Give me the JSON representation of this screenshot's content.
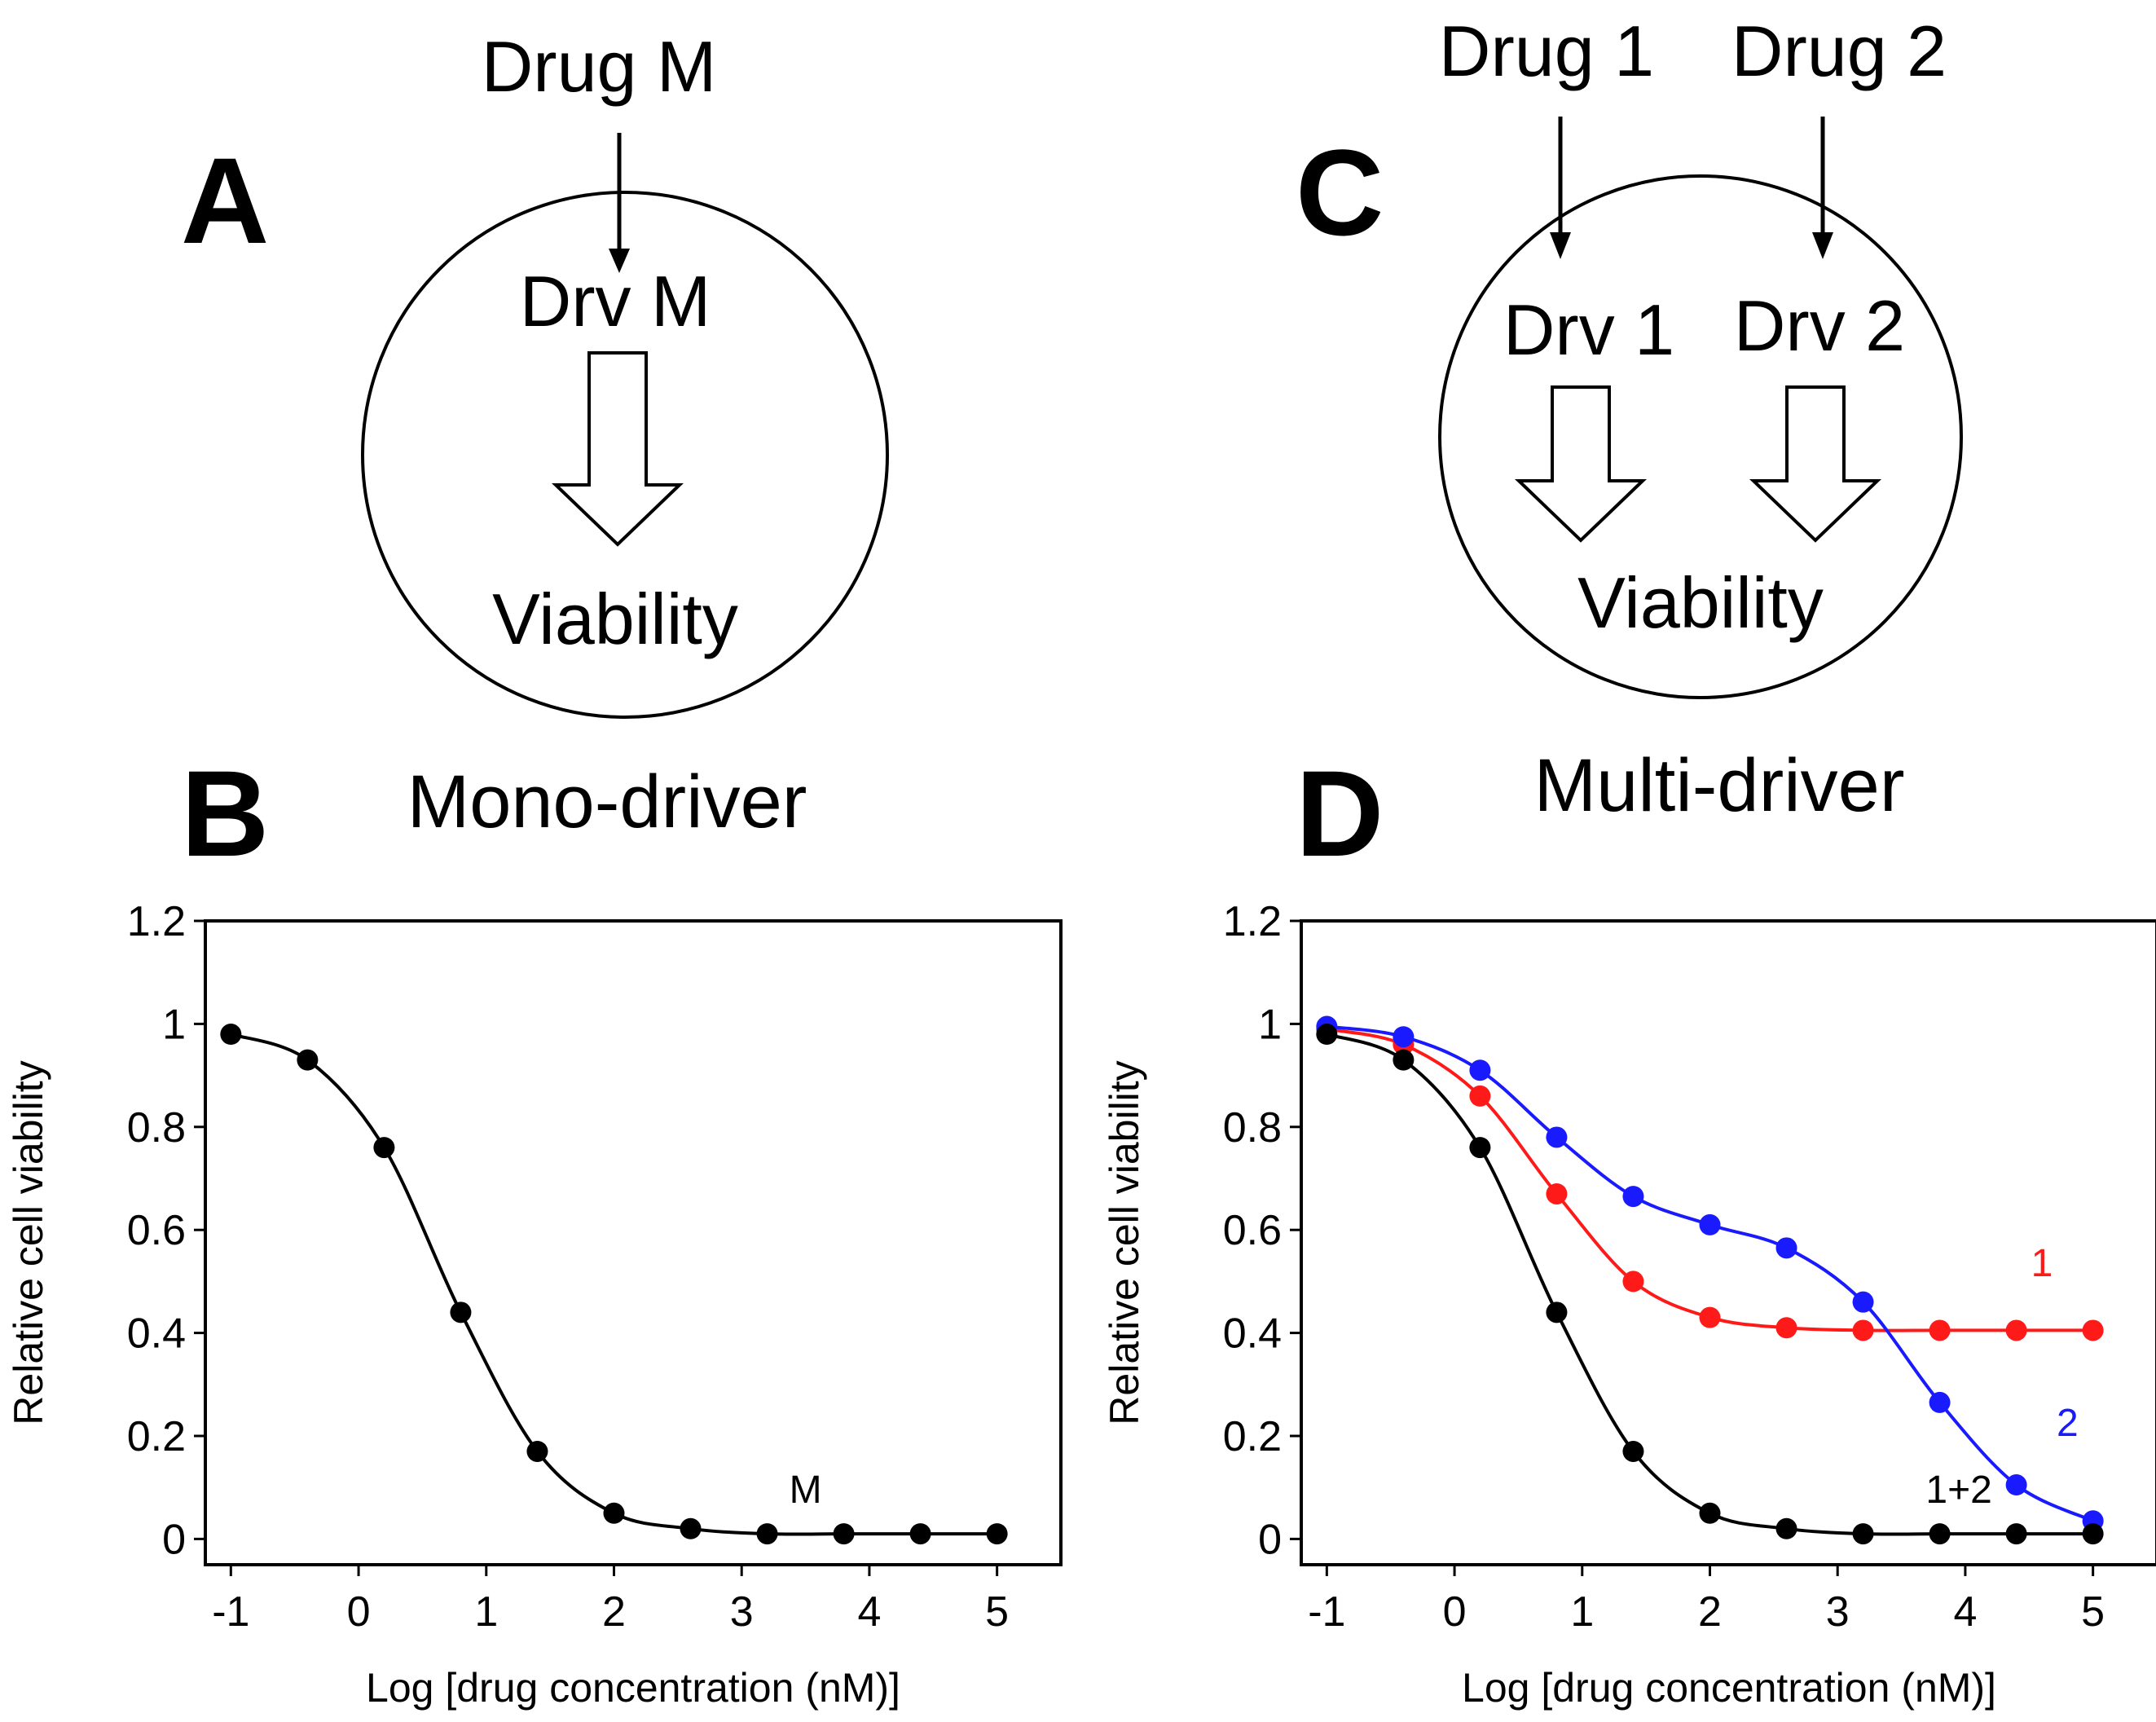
{
  "figure": {
    "panel_a": {
      "letter": "A",
      "drug_label": "Drug M",
      "driver_label": "Drv M",
      "outcome_label": "Viability",
      "caption": "Mono-driver"
    },
    "panel_b": {
      "letter": "B"
    },
    "panel_c": {
      "letter": "C",
      "drug1_label": "Drug 1",
      "drug2_label": "Drug 2",
      "driver1_label": "Drv 1",
      "driver2_label": "Drv 2",
      "outcome_label": "Viability",
      "caption": "Multi-driver"
    },
    "panel_d": {
      "letter": "D"
    }
  },
  "colors": {
    "black": "#000000",
    "red": "#ff1a1a",
    "blue": "#1a1aff"
  },
  "chart_data": [
    {
      "id": "panel-b",
      "type": "line",
      "xlabel": "Log [drug concentration (nM)]",
      "ylabel": "Relative cell viability",
      "xlim": [
        -1.2,
        5.5
      ],
      "ylim": [
        -0.05,
        1.2
      ],
      "xticks": [
        -1,
        0,
        1,
        2,
        3,
        4,
        5
      ],
      "xtick_labels": [
        "-1",
        "0",
        "1",
        "2",
        "3",
        "4",
        "5"
      ],
      "yticks": [
        0,
        0.2,
        0.4,
        0.6,
        0.8,
        1,
        1.2
      ],
      "ytick_labels": [
        "0",
        "0.2",
        "0.4",
        "0.6",
        "0.8",
        "1",
        "1.2"
      ],
      "series": [
        {
          "name": "M",
          "color": "#000000",
          "label_pos": [
            3.5,
            0.07
          ],
          "x": [
            -1,
            -0.4,
            0.2,
            0.8,
            1.4,
            2.0,
            2.6,
            3.2,
            3.8,
            4.4,
            5.0
          ],
          "y": [
            0.98,
            0.93,
            0.76,
            0.44,
            0.17,
            0.05,
            0.02,
            0.01,
            0.01,
            0.01,
            0.01
          ]
        }
      ]
    },
    {
      "id": "panel-d",
      "type": "line",
      "xlabel": "Log [drug concentration (nM)]",
      "ylabel": "Relative cell viability",
      "xlim": [
        -1.2,
        5.5
      ],
      "ylim": [
        -0.05,
        1.2
      ],
      "xticks": [
        -1,
        0,
        1,
        2,
        3,
        4,
        5
      ],
      "xtick_labels": [
        "-1",
        "0",
        "1",
        "2",
        "3",
        "4",
        "5"
      ],
      "yticks": [
        0,
        0.2,
        0.4,
        0.6,
        0.8,
        1,
        1.2
      ],
      "ytick_labels": [
        "0",
        "0.2",
        "0.4",
        "0.6",
        "0.8",
        "1",
        "1.2"
      ],
      "series": [
        {
          "name": "1",
          "color": "#ff1a1a",
          "label_pos": [
            4.6,
            0.51
          ],
          "x": [
            -1,
            -0.4,
            0.2,
            0.8,
            1.4,
            2.0,
            2.6,
            3.2,
            3.8,
            4.4,
            5.0
          ],
          "y": [
            0.99,
            0.96,
            0.86,
            0.67,
            0.5,
            0.43,
            0.41,
            0.405,
            0.405,
            0.405,
            0.405
          ]
        },
        {
          "name": "2",
          "color": "#1a1aff",
          "label_pos": [
            4.8,
            0.2
          ],
          "x": [
            -1,
            -0.4,
            0.2,
            0.8,
            1.4,
            2.0,
            2.6,
            3.2,
            3.8,
            4.4,
            5.0
          ],
          "y": [
            0.995,
            0.975,
            0.91,
            0.78,
            0.665,
            0.61,
            0.565,
            0.46,
            0.265,
            0.105,
            0.035
          ]
        },
        {
          "name": "1+2",
          "color": "#000000",
          "label_pos": [
            3.95,
            0.07
          ],
          "x": [
            -1,
            -0.4,
            0.2,
            0.8,
            1.4,
            2.0,
            2.6,
            3.2,
            3.8,
            4.4,
            5.0
          ],
          "y": [
            0.98,
            0.93,
            0.76,
            0.44,
            0.17,
            0.05,
            0.02,
            0.01,
            0.01,
            0.01,
            0.01
          ]
        }
      ]
    }
  ]
}
